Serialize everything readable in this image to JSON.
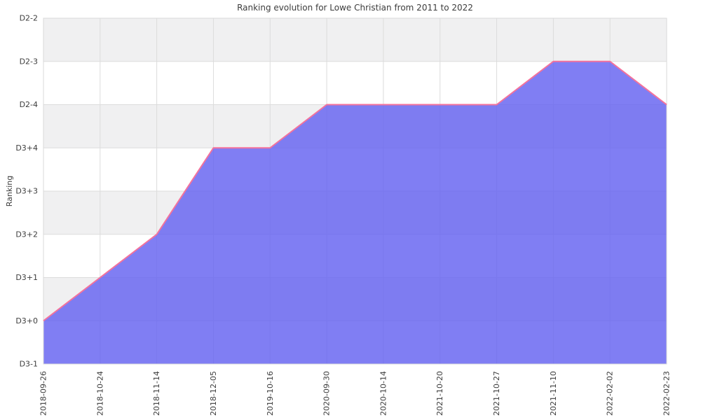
{
  "chart_data": {
    "type": "area",
    "title": "Ranking evolution for Lowe Christian from 2011 to 2022",
    "xlabel": "",
    "ylabel": "Ranking",
    "x": [
      "2018-09-26",
      "2018-10-24",
      "2018-11-14",
      "2018-12-05",
      "2019-10-16",
      "2020-09-30",
      "2020-10-14",
      "2021-10-20",
      "2021-10-27",
      "2021-11-10",
      "2022-02-02",
      "2022-02-23"
    ],
    "values": [
      "D3+0",
      "D3+1",
      "D3+2",
      "D3+4",
      "D3+4",
      "D2-4",
      "D2-4",
      "D2-4",
      "D2-4",
      "D2-3",
      "D2-3",
      "D2-4"
    ],
    "y_categories": [
      "D3-1",
      "D3+0",
      "D3+1",
      "D3+2",
      "D3+3",
      "D3+4",
      "D2-4",
      "D2-3",
      "D2-2"
    ],
    "y_range": [
      "D3-1",
      "D2-2"
    ],
    "grid": true,
    "legend": false,
    "band_shading": "alternating horizontal rows, shaded starting from top row",
    "colors": {
      "area_fill": "#6461f0",
      "line": "#f4729c",
      "band": "#f0f0f1",
      "grid": "#dcdcdc",
      "border": "#d9d9d9",
      "text": "#3c3c3c",
      "background": "#ffffff"
    }
  }
}
